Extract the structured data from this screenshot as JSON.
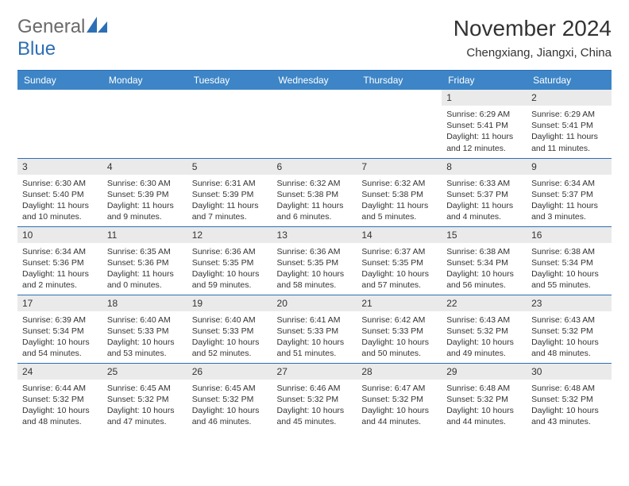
{
  "brand": {
    "name_part1": "General",
    "name_part2": "Blue"
  },
  "title": {
    "month": "November 2024",
    "location": "Chengxiang, Jiangxi, China"
  },
  "colors": {
    "header_bg": "#3d85c6",
    "header_text": "#ffffff",
    "border": "#2d6fb5",
    "daynum_bg": "#eaeaea",
    "text": "#333333",
    "logo_gray": "#6a6a6a",
    "logo_blue": "#2d6fb5",
    "page_bg": "#ffffff"
  },
  "weekdays": [
    "Sunday",
    "Monday",
    "Tuesday",
    "Wednesday",
    "Thursday",
    "Friday",
    "Saturday"
  ],
  "weeks": [
    [
      {
        "empty": true
      },
      {
        "empty": true
      },
      {
        "empty": true
      },
      {
        "empty": true
      },
      {
        "empty": true
      },
      {
        "day": "1",
        "sunrise": "Sunrise: 6:29 AM",
        "sunset": "Sunset: 5:41 PM",
        "daylight": "Daylight: 11 hours and 12 minutes."
      },
      {
        "day": "2",
        "sunrise": "Sunrise: 6:29 AM",
        "sunset": "Sunset: 5:41 PM",
        "daylight": "Daylight: 11 hours and 11 minutes."
      }
    ],
    [
      {
        "day": "3",
        "sunrise": "Sunrise: 6:30 AM",
        "sunset": "Sunset: 5:40 PM",
        "daylight": "Daylight: 11 hours and 10 minutes."
      },
      {
        "day": "4",
        "sunrise": "Sunrise: 6:30 AM",
        "sunset": "Sunset: 5:39 PM",
        "daylight": "Daylight: 11 hours and 9 minutes."
      },
      {
        "day": "5",
        "sunrise": "Sunrise: 6:31 AM",
        "sunset": "Sunset: 5:39 PM",
        "daylight": "Daylight: 11 hours and 7 minutes."
      },
      {
        "day": "6",
        "sunrise": "Sunrise: 6:32 AM",
        "sunset": "Sunset: 5:38 PM",
        "daylight": "Daylight: 11 hours and 6 minutes."
      },
      {
        "day": "7",
        "sunrise": "Sunrise: 6:32 AM",
        "sunset": "Sunset: 5:38 PM",
        "daylight": "Daylight: 11 hours and 5 minutes."
      },
      {
        "day": "8",
        "sunrise": "Sunrise: 6:33 AM",
        "sunset": "Sunset: 5:37 PM",
        "daylight": "Daylight: 11 hours and 4 minutes."
      },
      {
        "day": "9",
        "sunrise": "Sunrise: 6:34 AM",
        "sunset": "Sunset: 5:37 PM",
        "daylight": "Daylight: 11 hours and 3 minutes."
      }
    ],
    [
      {
        "day": "10",
        "sunrise": "Sunrise: 6:34 AM",
        "sunset": "Sunset: 5:36 PM",
        "daylight": "Daylight: 11 hours and 2 minutes."
      },
      {
        "day": "11",
        "sunrise": "Sunrise: 6:35 AM",
        "sunset": "Sunset: 5:36 PM",
        "daylight": "Daylight: 11 hours and 0 minutes."
      },
      {
        "day": "12",
        "sunrise": "Sunrise: 6:36 AM",
        "sunset": "Sunset: 5:35 PM",
        "daylight": "Daylight: 10 hours and 59 minutes."
      },
      {
        "day": "13",
        "sunrise": "Sunrise: 6:36 AM",
        "sunset": "Sunset: 5:35 PM",
        "daylight": "Daylight: 10 hours and 58 minutes."
      },
      {
        "day": "14",
        "sunrise": "Sunrise: 6:37 AM",
        "sunset": "Sunset: 5:35 PM",
        "daylight": "Daylight: 10 hours and 57 minutes."
      },
      {
        "day": "15",
        "sunrise": "Sunrise: 6:38 AM",
        "sunset": "Sunset: 5:34 PM",
        "daylight": "Daylight: 10 hours and 56 minutes."
      },
      {
        "day": "16",
        "sunrise": "Sunrise: 6:38 AM",
        "sunset": "Sunset: 5:34 PM",
        "daylight": "Daylight: 10 hours and 55 minutes."
      }
    ],
    [
      {
        "day": "17",
        "sunrise": "Sunrise: 6:39 AM",
        "sunset": "Sunset: 5:34 PM",
        "daylight": "Daylight: 10 hours and 54 minutes."
      },
      {
        "day": "18",
        "sunrise": "Sunrise: 6:40 AM",
        "sunset": "Sunset: 5:33 PM",
        "daylight": "Daylight: 10 hours and 53 minutes."
      },
      {
        "day": "19",
        "sunrise": "Sunrise: 6:40 AM",
        "sunset": "Sunset: 5:33 PM",
        "daylight": "Daylight: 10 hours and 52 minutes."
      },
      {
        "day": "20",
        "sunrise": "Sunrise: 6:41 AM",
        "sunset": "Sunset: 5:33 PM",
        "daylight": "Daylight: 10 hours and 51 minutes."
      },
      {
        "day": "21",
        "sunrise": "Sunrise: 6:42 AM",
        "sunset": "Sunset: 5:33 PM",
        "daylight": "Daylight: 10 hours and 50 minutes."
      },
      {
        "day": "22",
        "sunrise": "Sunrise: 6:43 AM",
        "sunset": "Sunset: 5:32 PM",
        "daylight": "Daylight: 10 hours and 49 minutes."
      },
      {
        "day": "23",
        "sunrise": "Sunrise: 6:43 AM",
        "sunset": "Sunset: 5:32 PM",
        "daylight": "Daylight: 10 hours and 48 minutes."
      }
    ],
    [
      {
        "day": "24",
        "sunrise": "Sunrise: 6:44 AM",
        "sunset": "Sunset: 5:32 PM",
        "daylight": "Daylight: 10 hours and 48 minutes."
      },
      {
        "day": "25",
        "sunrise": "Sunrise: 6:45 AM",
        "sunset": "Sunset: 5:32 PM",
        "daylight": "Daylight: 10 hours and 47 minutes."
      },
      {
        "day": "26",
        "sunrise": "Sunrise: 6:45 AM",
        "sunset": "Sunset: 5:32 PM",
        "daylight": "Daylight: 10 hours and 46 minutes."
      },
      {
        "day": "27",
        "sunrise": "Sunrise: 6:46 AM",
        "sunset": "Sunset: 5:32 PM",
        "daylight": "Daylight: 10 hours and 45 minutes."
      },
      {
        "day": "28",
        "sunrise": "Sunrise: 6:47 AM",
        "sunset": "Sunset: 5:32 PM",
        "daylight": "Daylight: 10 hours and 44 minutes."
      },
      {
        "day": "29",
        "sunrise": "Sunrise: 6:48 AM",
        "sunset": "Sunset: 5:32 PM",
        "daylight": "Daylight: 10 hours and 44 minutes."
      },
      {
        "day": "30",
        "sunrise": "Sunrise: 6:48 AM",
        "sunset": "Sunset: 5:32 PM",
        "daylight": "Daylight: 10 hours and 43 minutes."
      }
    ]
  ]
}
